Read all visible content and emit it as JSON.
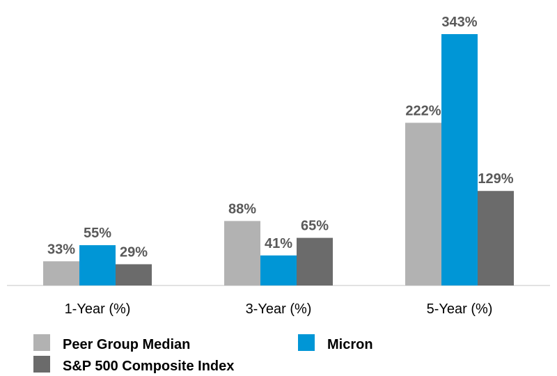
{
  "chart_data": {
    "type": "bar",
    "categories": [
      "1-Year (%)",
      "3-Year (%)",
      "5-Year (%)"
    ],
    "series": [
      {
        "name": "Peer Group Median",
        "color": "#b2b2b2",
        "values": [
          33,
          88,
          222
        ],
        "labels": [
          "33%",
          "88%",
          "222%"
        ]
      },
      {
        "name": "Micron",
        "color": "#0096d6",
        "values": [
          55,
          41,
          343
        ],
        "labels": [
          "55%",
          "41%",
          "343%"
        ]
      },
      {
        "name": "S&P 500 Composite Index",
        "color": "#6b6b6b",
        "values": [
          29,
          65,
          129
        ],
        "labels": [
          "29%",
          "65%",
          "129%"
        ]
      }
    ],
    "ylim": [
      0,
      343
    ],
    "grid": false,
    "legend_position": "bottom"
  }
}
